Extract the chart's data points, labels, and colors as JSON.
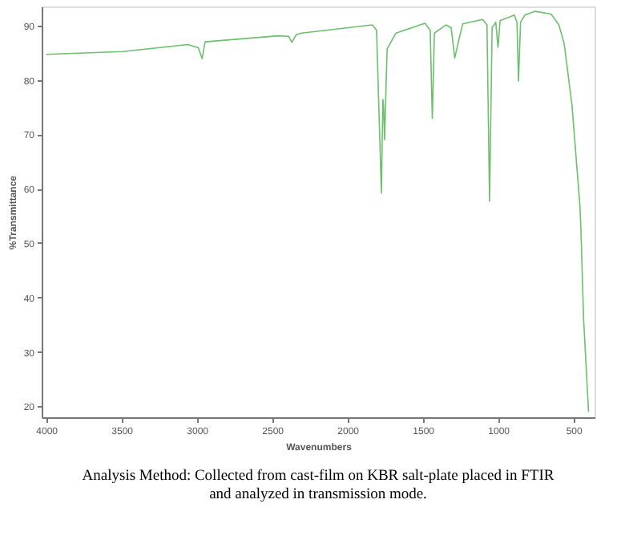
{
  "chart_data": {
    "type": "line",
    "xlabel": "Wavenumbers",
    "ylabel": "%Transmittance",
    "xlim": [
      4030,
      360
    ],
    "xticks": [
      4000,
      3500,
      3000,
      2500,
      2000,
      1500,
      1000,
      500
    ],
    "ylim": [
      18,
      93.5
    ],
    "yticks": [
      20,
      30,
      40,
      50,
      60,
      70,
      80,
      90
    ],
    "grid": false,
    "marker": "none",
    "line_style": "solid",
    "annotations": [
      "Analysis Method: Collected from cast-film on KBR salt-plate placed in FTIR and analyzed in transmission mode."
    ],
    "series": [
      {
        "color": "#6cbf6c",
        "x": [
          4000,
          3490,
          3060,
          2990,
          2965,
          2945,
          2460,
          2390,
          2370,
          2340,
          2305,
          1835,
          1807,
          1775,
          1765,
          1760,
          1754,
          1737,
          1678,
          1486,
          1451,
          1437,
          1423,
          1347,
          1312,
          1288,
          1259,
          1235,
          1103,
          1074,
          1057,
          1040,
          1016,
          1001,
          987,
          893,
          875,
          865,
          851,
          823,
          754,
          649,
          597,
          562,
          510,
          457,
          451,
          433,
          400
        ],
        "values": [
          84.7,
          85.2,
          86.5,
          85.9,
          83.9,
          87.0,
          88.1,
          88.0,
          86.9,
          88.3,
          88.6,
          90.1,
          89.1,
          59.2,
          76.4,
          75.0,
          69.0,
          85.7,
          88.6,
          90.4,
          89.1,
          72.9,
          88.6,
          90.1,
          89.6,
          84.0,
          87.6,
          90.3,
          91.1,
          90.1,
          57.7,
          89.6,
          90.6,
          86.0,
          90.9,
          91.9,
          90.6,
          79.8,
          90.6,
          91.9,
          92.6,
          92.1,
          90.1,
          86.7,
          75.4,
          56.8,
          52.9,
          36.2,
          19.0
        ]
      }
    ]
  }
}
